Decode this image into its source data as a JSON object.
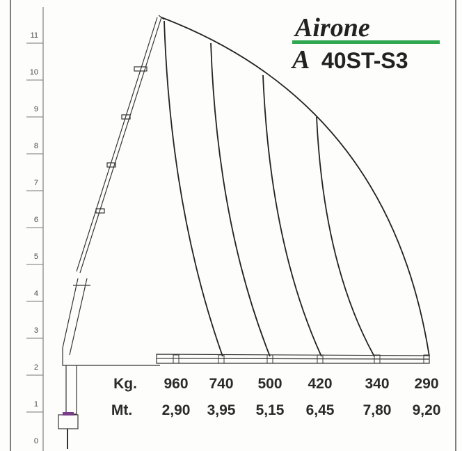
{
  "brand": "Airone",
  "model_prefix": "A",
  "model": "40ST-S3",
  "height_scale": [
    "0",
    "1",
    "2",
    "3",
    "4",
    "5",
    "6",
    "7",
    "8",
    "9",
    "10",
    "11"
  ],
  "load_table": {
    "load_label": "Kg.",
    "reach_label": "Mt.",
    "loads": [
      "960",
      "740",
      "500",
      "420",
      "340",
      "290"
    ],
    "reaches": [
      "2,90",
      "3,95",
      "5,15",
      "6,45",
      "7,80",
      "9,20"
    ]
  }
}
